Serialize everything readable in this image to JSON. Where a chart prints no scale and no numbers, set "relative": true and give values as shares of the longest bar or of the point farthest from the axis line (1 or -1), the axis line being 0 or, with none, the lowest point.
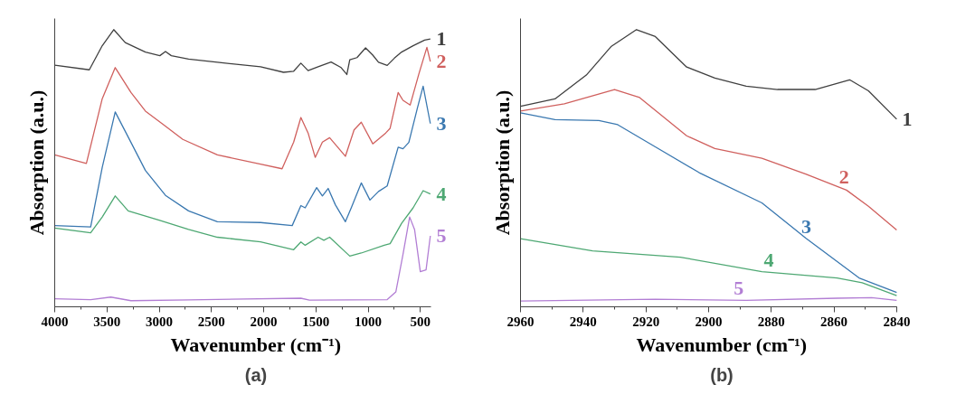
{
  "chart_data": [
    {
      "type": "line",
      "relative": true,
      "xlabel": "Wavenumber (cm⁻¹)",
      "ylabel": "Absorption (a.u.)",
      "annotations": [
        "(a)"
      ],
      "xlim": [
        4000,
        400
      ],
      "xticks": [
        4000,
        3500,
        3000,
        2500,
        2000,
        1500,
        1000,
        500
      ],
      "grid": false,
      "tick_labels": "x",
      "series": [
        {
          "name": "1",
          "color": "#404040",
          "x": [
            4000,
            3669,
            3545,
            3435,
            3325,
            3132,
            2994,
            2940,
            2884,
            2719,
            2443,
            2030,
            1810,
            1713,
            1644,
            1575,
            1479,
            1355,
            1259,
            1204,
            1176,
            1107,
            1025,
            956,
            901,
            818,
            749,
            680,
            570,
            460,
            405
          ],
          "values": [
            0.872,
            0.855,
            0.942,
            1.0,
            0.953,
            0.919,
            0.906,
            0.921,
            0.906,
            0.894,
            0.882,
            0.866,
            0.846,
            0.85,
            0.879,
            0.852,
            0.866,
            0.883,
            0.863,
            0.838,
            0.891,
            0.899,
            0.934,
            0.908,
            0.882,
            0.871,
            0.897,
            0.919,
            0.942,
            0.962,
            0.966
          ]
        },
        {
          "name": "2",
          "color": "#d0605e",
          "x": [
            4000,
            3697,
            3545,
            3421,
            3270,
            3132,
            2953,
            2774,
            2443,
            2030,
            1824,
            1713,
            1644,
            1575,
            1507,
            1438,
            1369,
            1218,
            1135,
            1066,
            956,
            832,
            790,
            713,
            667,
            598,
            515,
            438,
            405
          ],
          "values": [
            0.548,
            0.517,
            0.751,
            0.863,
            0.773,
            0.706,
            0.655,
            0.604,
            0.548,
            0.515,
            0.498,
            0.594,
            0.683,
            0.627,
            0.539,
            0.594,
            0.61,
            0.543,
            0.638,
            0.666,
            0.588,
            0.627,
            0.644,
            0.773,
            0.745,
            0.728,
            0.84,
            0.936,
            0.885
          ]
        },
        {
          "name": "3",
          "color": "#3a78b0",
          "x": [
            4000,
            3656,
            3545,
            3421,
            3270,
            3132,
            2940,
            2719,
            2443,
            2030,
            1727,
            1644,
            1603,
            1493,
            1438,
            1383,
            1314,
            1218,
            1162,
            1066,
            983,
            901,
            818,
            713,
            667,
            611,
            529,
            474,
            405
          ],
          "values": [
            0.293,
            0.288,
            0.503,
            0.703,
            0.593,
            0.492,
            0.402,
            0.346,
            0.307,
            0.304,
            0.293,
            0.365,
            0.357,
            0.43,
            0.4,
            0.427,
            0.368,
            0.307,
            0.357,
            0.447,
            0.385,
            0.416,
            0.436,
            0.576,
            0.57,
            0.593,
            0.717,
            0.796,
            0.661
          ]
        },
        {
          "name": "4",
          "color": "#4ea873",
          "x": [
            4000,
            3656,
            3545,
            3421,
            3297,
            2994,
            2719,
            2443,
            2030,
            1713,
            1644,
            1603,
            1479,
            1424,
            1369,
            1176,
            1066,
            846,
            790,
            680,
            570,
            474,
            405
          ],
          "values": [
            0.284,
            0.267,
            0.324,
            0.4,
            0.346,
            0.312,
            0.279,
            0.251,
            0.234,
            0.206,
            0.234,
            0.222,
            0.251,
            0.24,
            0.251,
            0.183,
            0.194,
            0.222,
            0.228,
            0.301,
            0.357,
            0.419,
            0.407
          ]
        },
        {
          "name": "5",
          "color": "#b27ed4",
          "x": [
            4000,
            3656,
            3463,
            3270,
            2719,
            1644,
            1562,
            818,
            735,
            667,
            603,
            556,
            501,
            446,
            405
          ],
          "values": [
            0.029,
            0.026,
            0.035,
            0.022,
            0.025,
            0.031,
            0.024,
            0.026,
            0.054,
            0.189,
            0.324,
            0.279,
            0.127,
            0.133,
            0.256
          ]
        }
      ]
    },
    {
      "type": "line",
      "relative": true,
      "xlabel": "Wavenumber (cm⁻¹)",
      "ylabel": "Absorption (a.u.)",
      "annotations": [
        "(b)"
      ],
      "xlim": [
        2960,
        2840
      ],
      "xticks": [
        2960,
        2940,
        2920,
        2900,
        2880,
        2860,
        2840
      ],
      "grid": false,
      "tick_labels": "x",
      "series": [
        {
          "name": "1",
          "color": "#404040",
          "x": [
            2960,
            2949,
            2939,
            2931,
            2923,
            2917,
            2907,
            2898,
            2888,
            2878,
            2866,
            2855,
            2849,
            2840
          ],
          "values": [
            0.723,
            0.75,
            0.836,
            0.94,
            1.0,
            0.975,
            0.865,
            0.825,
            0.796,
            0.784,
            0.784,
            0.819,
            0.779,
            0.677
          ]
        },
        {
          "name": "2",
          "color": "#d0605e",
          "x": [
            2960,
            2946,
            2930,
            2922,
            2907,
            2898,
            2883,
            2869,
            2856,
            2849,
            2840
          ],
          "values": [
            0.706,
            0.732,
            0.784,
            0.755,
            0.617,
            0.571,
            0.536,
            0.479,
            0.421,
            0.363,
            0.277
          ]
        },
        {
          "name": "3",
          "color": "#3a78b0",
          "x": [
            2960,
            2949,
            2935,
            2929,
            2917,
            2903,
            2883,
            2869,
            2852,
            2840
          ],
          "values": [
            0.7,
            0.675,
            0.672,
            0.657,
            0.577,
            0.484,
            0.375,
            0.248,
            0.104,
            0.052
          ]
        },
        {
          "name": "4",
          "color": "#4ea873",
          "x": [
            2960,
            2937,
            2909,
            2883,
            2859,
            2851,
            2840
          ],
          "values": [
            0.246,
            0.202,
            0.179,
            0.127,
            0.104,
            0.087,
            0.04
          ]
        },
        {
          "name": "5",
          "color": "#b27ed4",
          "x": [
            2960,
            2917,
            2888,
            2859,
            2848,
            2840
          ],
          "values": [
            0.021,
            0.027,
            0.023,
            0.031,
            0.033,
            0.023
          ]
        }
      ]
    }
  ]
}
